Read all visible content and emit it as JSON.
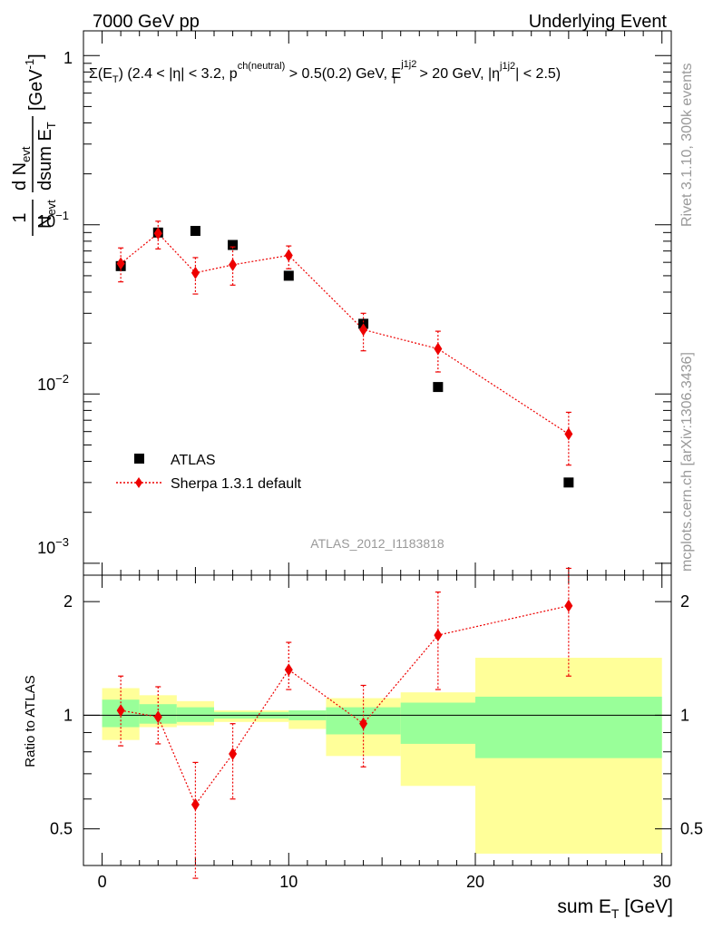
{
  "header": {
    "left": "7000 GeV pp",
    "right": "Underlying Event"
  },
  "side": {
    "rivet": "Rivet 3.1.10,  300k events",
    "mcplots": "mcplots.cern.ch [arXiv:1306.3436]"
  },
  "colors": {
    "mc": "#ee0000",
    "data": "#000000",
    "band_inner": "#99ff99",
    "band_outer": "#ffff99"
  },
  "chart_data": [
    {
      "type": "scatter",
      "title_parts": {
        "a": "Σ(E",
        "a_sub": "T",
        "b": ") (2.4 < |η| < 3.2, p",
        "b_sup": "ch(neutral)",
        "c": " > 0.5(0.2) GeV, E",
        "c_sup": "j1j2",
        "c_sub": "T",
        "d": " > 20 GeV, |η",
        "d_sup": "j1j2",
        "e": "| < 2.5)"
      },
      "ylabel_parts": {
        "one": "1",
        "n": "N",
        "n_sub": "evt",
        "dn": "d N",
        "dn_sub": "evt",
        "dsum": "dsum E",
        "dsum_sub": "T",
        "unit": "[GeV",
        "unit_sup": "-1",
        "unit_end": "]"
      },
      "ytick_labels": [
        {
          "base": "1",
          "exp": ""
        },
        {
          "base": "10",
          "exp": "−1"
        },
        {
          "base": "10",
          "exp": "−2"
        },
        {
          "base": "10",
          "exp": "−3"
        }
      ],
      "ylim": [
        0.00085,
        1.4
      ],
      "yscale": "log",
      "xlim": [
        -1,
        30.5
      ],
      "watermark": "ATLAS_2012_I1183818",
      "legend": {
        "data": "ATLAS",
        "mc": "Sherpa 1.3.1 default",
        "placement": "bottom-left"
      },
      "data": {
        "x": [
          1,
          3,
          5,
          7,
          10,
          14,
          18,
          25
        ],
        "y": [
          0.057,
          0.09,
          0.092,
          0.076,
          0.05,
          0.026,
          0.011,
          0.003
        ]
      },
      "mc": {
        "x": [
          1,
          3,
          5,
          7,
          10,
          14,
          18,
          25
        ],
        "y": [
          0.059,
          0.089,
          0.052,
          0.058,
          0.066,
          0.024,
          0.0185,
          0.0058
        ],
        "y_lo": [
          0.046,
          0.072,
          0.039,
          0.044,
          0.055,
          0.018,
          0.0135,
          0.0038
        ],
        "y_hi": [
          0.073,
          0.105,
          0.064,
          0.074,
          0.075,
          0.03,
          0.0235,
          0.0078
        ]
      }
    },
    {
      "type": "scatter",
      "ylabel": "Ratio to ATLAS",
      "xlabel_parts": {
        "a": "sum E",
        "a_sub": "T",
        "b": " [GeV]"
      },
      "xtick_labels": [
        "0",
        "10",
        "20",
        "30"
      ],
      "ytick_labels": [
        "0.5",
        "1",
        "2"
      ],
      "ylim": [
        0.4,
        2.35
      ],
      "yscale": "log",
      "xlim": [
        -1,
        30.5
      ],
      "bands": [
        {
          "x0": 0,
          "x1": 2,
          "in_lo": 0.93,
          "in_hi": 1.1,
          "out_lo": 0.86,
          "out_hi": 1.18
        },
        {
          "x0": 2,
          "x1": 4,
          "in_lo": 0.95,
          "in_hi": 1.07,
          "out_lo": 0.93,
          "out_hi": 1.13
        },
        {
          "x0": 4,
          "x1": 6,
          "in_lo": 0.96,
          "in_hi": 1.05,
          "out_lo": 0.94,
          "out_hi": 1.09
        },
        {
          "x0": 6,
          "x1": 10,
          "in_lo": 0.98,
          "in_hi": 1.02,
          "out_lo": 0.96,
          "out_hi": 1.03
        },
        {
          "x0": 10,
          "x1": 12,
          "in_lo": 0.97,
          "in_hi": 1.03,
          "out_lo": 0.92,
          "out_hi": 1.03
        },
        {
          "x0": 12,
          "x1": 16,
          "in_lo": 0.89,
          "in_hi": 1.05,
          "out_lo": 0.78,
          "out_hi": 1.11
        },
        {
          "x0": 16,
          "x1": 20,
          "in_lo": 0.84,
          "in_hi": 1.08,
          "out_lo": 0.65,
          "out_hi": 1.15
        },
        {
          "x0": 20,
          "x1": 30,
          "in_lo": 0.77,
          "in_hi": 1.12,
          "out_lo": 0.43,
          "out_hi": 1.42
        }
      ],
      "mc": {
        "x": [
          1,
          3,
          5,
          7,
          10,
          14,
          18,
          25
        ],
        "y": [
          1.03,
          0.99,
          0.58,
          0.79,
          1.32,
          0.95,
          1.63,
          1.95
        ],
        "y_lo": [
          0.83,
          0.84,
          0.37,
          0.6,
          1.17,
          0.73,
          1.17,
          1.27
        ],
        "y_hi": [
          1.27,
          1.19,
          0.75,
          0.95,
          1.56,
          1.2,
          2.12,
          2.45
        ]
      }
    }
  ]
}
